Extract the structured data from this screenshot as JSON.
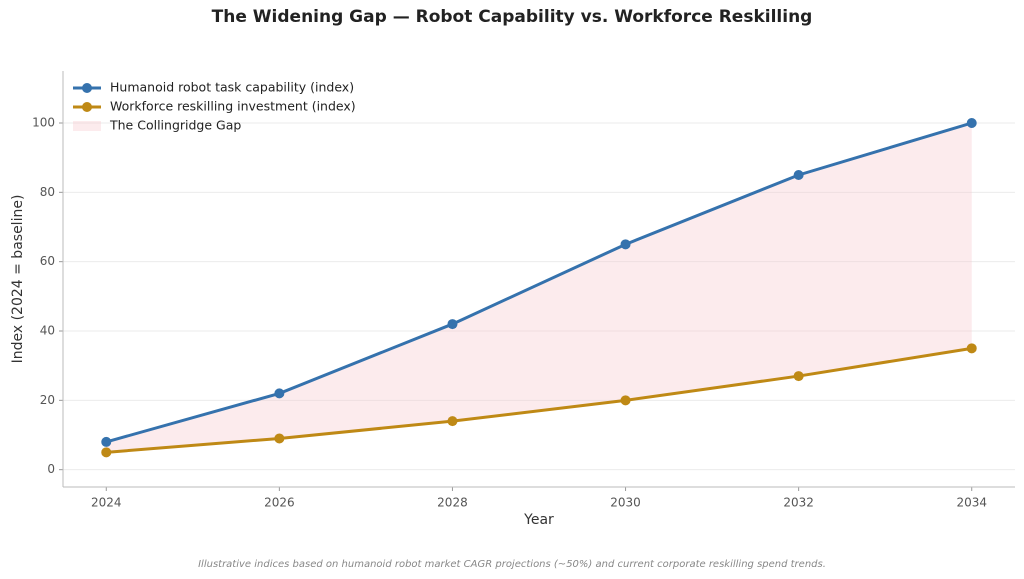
{
  "chart_data": {
    "type": "line",
    "title": "The Widening Gap — Robot Capability vs. Workforce Reskilling",
    "xlabel": "Year",
    "ylabel": "Index (2024 = baseline)",
    "caption": "Illustrative indices based on humanoid robot market CAGR projections (~50%) and current corporate reskilling spend trends.",
    "x": [
      2024,
      2026,
      2028,
      2030,
      2032,
      2034
    ],
    "series": [
      {
        "name": "Humanoid robot task capability (index)",
        "color": "#3572ad",
        "values": [
          8,
          22,
          42,
          65,
          85,
          100
        ]
      },
      {
        "name": "Workforce reskilling investment (index)",
        "color": "#bf8915",
        "values": [
          5,
          9,
          14,
          20,
          27,
          35
        ]
      }
    ],
    "fill_between": {
      "name": "The Collingridge Gap",
      "color": "#f5c6cc"
    },
    "xlim": [
      2023.5,
      2034.5
    ],
    "xticks": [
      2024,
      2026,
      2028,
      2030,
      2032,
      2034
    ],
    "ylim": [
      -5,
      115
    ],
    "yticks": [
      0,
      20,
      40,
      60,
      80,
      100
    ],
    "grid": true,
    "legend": "upper-left"
  }
}
